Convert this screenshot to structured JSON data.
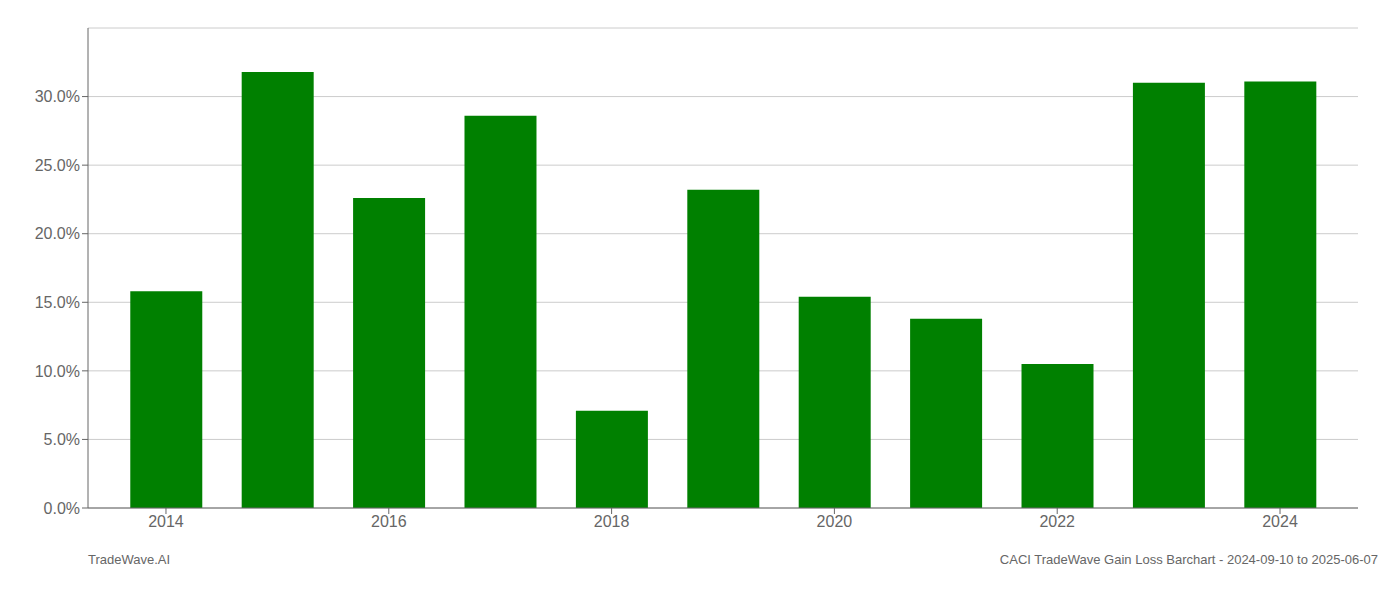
{
  "chart_data": {
    "type": "bar",
    "x": [
      2014,
      2015,
      2016,
      2017,
      2018,
      2019,
      2020,
      2021,
      2022,
      2023,
      2024
    ],
    "values": [
      0.158,
      0.318,
      0.226,
      0.286,
      0.071,
      0.232,
      0.154,
      0.138,
      0.105,
      0.31,
      0.311
    ],
    "color": "#008000",
    "xlim": [
      2013.3,
      2024.7
    ],
    "xticks": [
      2014,
      2016,
      2018,
      2020,
      2022,
      2024
    ],
    "ylim": [
      0.0,
      0.35
    ],
    "yticks": [
      {
        "value": 0.0,
        "label": "0.0%"
      },
      {
        "value": 0.05,
        "label": "5.0%"
      },
      {
        "value": 0.1,
        "label": "10.0%"
      },
      {
        "value": 0.15,
        "label": "15.0%"
      },
      {
        "value": 0.2,
        "label": "20.0%"
      },
      {
        "value": 0.25,
        "label": "25.0%"
      },
      {
        "value": 0.3,
        "label": "30.0%"
      }
    ],
    "grid": true,
    "annotations": [
      "TradeWave.AI",
      "CACI TradeWave Gain Loss Barchart - 2024-09-10 to 2025-06-07"
    ]
  }
}
